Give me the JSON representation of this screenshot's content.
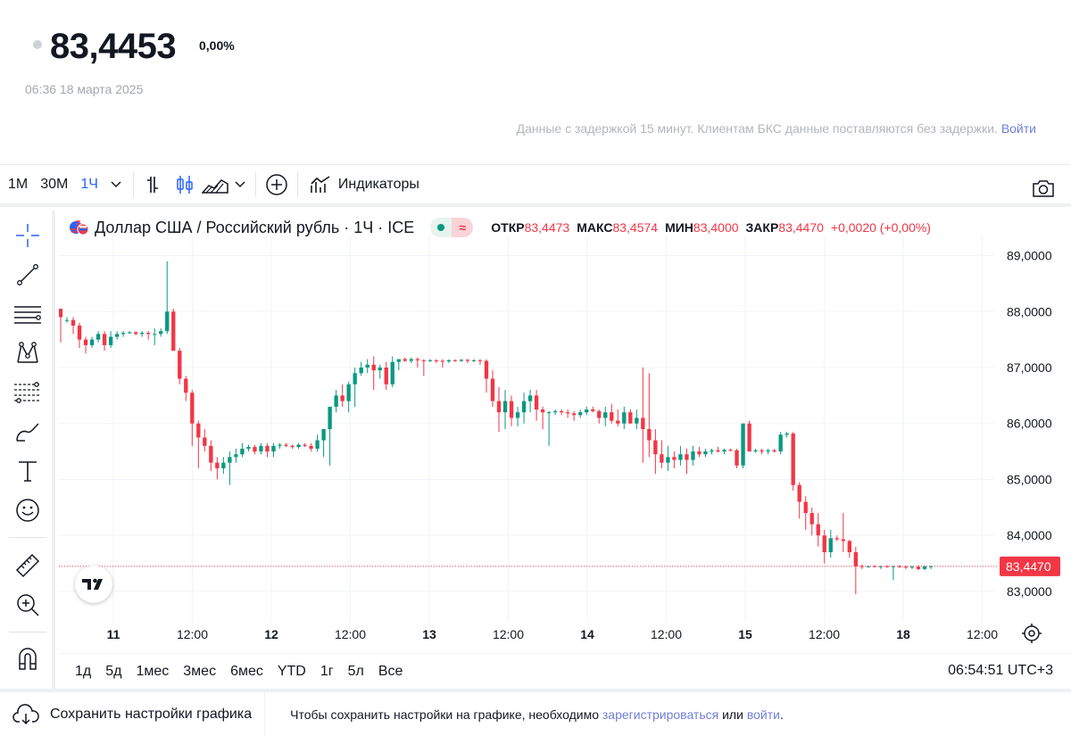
{
  "quote": {
    "price": "83,4453",
    "change": "0,00%",
    "timestamp": "06:36 18 марта 2025",
    "delay_note": "Данные с задержкой 15 минут. Клиентам БКС данные поставляются без задержки.",
    "login_link": "Войти"
  },
  "toolbar": {
    "intervals": [
      "1M",
      "30M",
      "1Ч"
    ],
    "active_interval": "1Ч",
    "indicators_label": "Индикаторы"
  },
  "legend": {
    "symbol": "Доллар США / Российский рубль · 1Ч · ICE",
    "open_label": "ОТКР",
    "open": "83,4473",
    "high_label": "МАКС",
    "high": "83,4574",
    "low_label": "МИН",
    "low": "83,4000",
    "close_label": "ЗАКР",
    "close": "83,4470",
    "change": "+0,0020 (+0,00%)"
  },
  "chart_data": {
    "type": "candlestick",
    "y_ticks": [
      "89,0000",
      "88,0000",
      "87,0000",
      "86,0000",
      "85,0000",
      "84,0000",
      "83,0000"
    ],
    "ylim": [
      82.6,
      89.2
    ],
    "x_tick_labels": [
      "11",
      "12:00",
      "12",
      "12:00",
      "13",
      "12:00",
      "14",
      "12:00",
      "15",
      "12:00",
      "18",
      "12:00"
    ],
    "last_price": 83.447,
    "last_price_label": "83,4470",
    "colors": {
      "up": "#089981",
      "down": "#f23645",
      "grid": "#f0f3fa"
    },
    "candles": [
      [
        88.05,
        88.05,
        87.45,
        87.9
      ],
      [
        87.85,
        87.9,
        87.8,
        87.85
      ],
      [
        87.85,
        87.9,
        87.6,
        87.75
      ],
      [
        87.75,
        87.8,
        87.35,
        87.5
      ],
      [
        87.5,
        87.55,
        87.25,
        87.4
      ],
      [
        87.4,
        87.55,
        87.35,
        87.5
      ],
      [
        87.5,
        87.65,
        87.45,
        87.6
      ],
      [
        87.6,
        87.65,
        87.3,
        87.4
      ],
      [
        87.4,
        87.65,
        87.35,
        87.55
      ],
      [
        87.55,
        87.65,
        87.5,
        87.6
      ],
      [
        87.6,
        87.65,
        87.55,
        87.62
      ],
      [
        87.62,
        87.65,
        87.6,
        87.63
      ],
      [
        87.63,
        87.65,
        87.58,
        87.6
      ],
      [
        87.6,
        87.65,
        87.55,
        87.62
      ],
      [
        87.62,
        87.65,
        87.5,
        87.6
      ],
      [
        87.6,
        87.7,
        87.4,
        87.6
      ],
      [
        87.6,
        87.7,
        87.55,
        87.65
      ],
      [
        87.65,
        88.9,
        87.6,
        88.0
      ],
      [
        88.0,
        88.05,
        87.3,
        87.3
      ],
      [
        87.3,
        87.35,
        86.7,
        86.8
      ],
      [
        86.8,
        86.85,
        86.4,
        86.55
      ],
      [
        86.55,
        86.6,
        85.6,
        86.0
      ],
      [
        86.0,
        86.05,
        85.2,
        85.75
      ],
      [
        85.75,
        85.9,
        85.5,
        85.6
      ],
      [
        85.6,
        85.7,
        85.15,
        85.3
      ],
      [
        85.3,
        85.4,
        85.0,
        85.2
      ],
      [
        85.2,
        85.4,
        85.1,
        85.3
      ],
      [
        85.3,
        85.5,
        84.9,
        85.4
      ],
      [
        85.4,
        85.55,
        85.3,
        85.45
      ],
      [
        85.45,
        85.65,
        85.4,
        85.55
      ],
      [
        85.55,
        85.62,
        85.5,
        85.58
      ],
      [
        85.58,
        85.62,
        85.45,
        85.5
      ],
      [
        85.5,
        85.65,
        85.45,
        85.6
      ],
      [
        85.6,
        85.65,
        85.4,
        85.5
      ],
      [
        85.5,
        85.65,
        85.4,
        85.6
      ],
      [
        85.6,
        85.65,
        85.55,
        85.62
      ],
      [
        85.62,
        85.65,
        85.58,
        85.6
      ],
      [
        85.6,
        85.62,
        85.55,
        85.58
      ],
      [
        85.58,
        85.65,
        85.55,
        85.62
      ],
      [
        85.62,
        85.65,
        85.58,
        85.6
      ],
      [
        85.6,
        85.65,
        85.5,
        85.55
      ],
      [
        85.55,
        85.8,
        85.5,
        85.7
      ],
      [
        85.7,
        85.9,
        85.4,
        85.9
      ],
      [
        85.9,
        86.3,
        85.25,
        86.3
      ],
      [
        86.3,
        86.6,
        86.2,
        86.5
      ],
      [
        86.5,
        86.7,
        86.3,
        86.4
      ],
      [
        86.4,
        86.75,
        86.2,
        86.7
      ],
      [
        86.7,
        87.0,
        86.3,
        86.9
      ],
      [
        86.9,
        87.1,
        86.85,
        87.0
      ],
      [
        87.0,
        87.15,
        86.9,
        87.05
      ],
      [
        87.05,
        87.2,
        86.6,
        86.95
      ],
      [
        86.95,
        87.05,
        86.8,
        87.0
      ],
      [
        87.0,
        87.1,
        86.6,
        86.7
      ],
      [
        86.7,
        87.2,
        86.65,
        87.1
      ],
      [
        87.1,
        87.15,
        86.95,
        87.15
      ],
      [
        87.15,
        87.18,
        87.1,
        87.12
      ],
      [
        87.12,
        87.18,
        87.08,
        87.15
      ],
      [
        87.15,
        87.18,
        87.0,
        87.13
      ],
      [
        87.13,
        87.15,
        86.85,
        87.12
      ],
      [
        87.12,
        87.15,
        87.1,
        87.13
      ],
      [
        87.13,
        87.15,
        87.08,
        87.12
      ],
      [
        87.12,
        87.15,
        87.0,
        87.11
      ],
      [
        87.11,
        87.15,
        87.08,
        87.13
      ],
      [
        87.13,
        87.15,
        87.1,
        87.12
      ],
      [
        87.12,
        87.15,
        87.1,
        87.14
      ],
      [
        87.14,
        87.15,
        87.08,
        87.12
      ],
      [
        87.12,
        87.15,
        87.1,
        87.13
      ],
      [
        87.13,
        87.15,
        87.05,
        87.12
      ],
      [
        87.12,
        87.15,
        86.55,
        86.8
      ],
      [
        86.8,
        86.95,
        86.3,
        86.4
      ],
      [
        86.4,
        86.65,
        85.85,
        86.2
      ],
      [
        86.2,
        86.6,
        85.9,
        86.4
      ],
      [
        86.4,
        86.5,
        85.95,
        86.1
      ],
      [
        86.1,
        86.3,
        85.95,
        86.2
      ],
      [
        86.2,
        86.55,
        86.0,
        86.4
      ],
      [
        86.4,
        86.6,
        86.2,
        86.5
      ],
      [
        86.5,
        86.6,
        86.05,
        86.25
      ],
      [
        86.25,
        86.3,
        85.9,
        86.2
      ],
      [
        86.2,
        86.22,
        85.6,
        86.2
      ],
      [
        86.2,
        86.25,
        86.15,
        86.22
      ],
      [
        86.22,
        86.25,
        86.15,
        86.2
      ],
      [
        86.2,
        86.25,
        86.1,
        86.18
      ],
      [
        86.18,
        86.22,
        86.05,
        86.15
      ],
      [
        86.15,
        86.25,
        86.1,
        86.2
      ],
      [
        86.2,
        86.3,
        86.15,
        86.25
      ],
      [
        86.25,
        86.3,
        86.2,
        86.22
      ],
      [
        86.22,
        86.25,
        86.0,
        86.1
      ],
      [
        86.1,
        86.3,
        85.95,
        86.2
      ],
      [
        86.2,
        86.35,
        86.0,
        86.05
      ],
      [
        86.05,
        86.25,
        85.95,
        86.0
      ],
      [
        86.0,
        86.3,
        85.9,
        86.2
      ],
      [
        86.2,
        86.25,
        86.0,
        86.0
      ],
      [
        86.0,
        86.25,
        85.9,
        86.1
      ],
      [
        86.1,
        87.0,
        85.3,
        85.9
      ],
      [
        85.9,
        86.9,
        85.4,
        85.7
      ],
      [
        85.7,
        85.9,
        85.1,
        85.45
      ],
      [
        85.45,
        85.7,
        85.2,
        85.3
      ],
      [
        85.3,
        85.6,
        85.15,
        85.4
      ],
      [
        85.4,
        85.5,
        85.2,
        85.35
      ],
      [
        85.35,
        85.6,
        85.25,
        85.45
      ],
      [
        85.45,
        85.55,
        85.1,
        85.35
      ],
      [
        85.35,
        85.6,
        85.25,
        85.5
      ],
      [
        85.5,
        85.58,
        85.4,
        85.45
      ],
      [
        85.45,
        85.55,
        85.4,
        85.5
      ],
      [
        85.5,
        85.55,
        85.45,
        85.52
      ],
      [
        85.52,
        85.58,
        85.48,
        85.5
      ],
      [
        85.5,
        85.55,
        85.45,
        85.53
      ],
      [
        85.53,
        85.55,
        85.5,
        85.52
      ],
      [
        85.52,
        85.55,
        85.2,
        85.25
      ],
      [
        85.25,
        86.0,
        85.2,
        86.0
      ],
      [
        86.0,
        86.05,
        85.5,
        85.5
      ],
      [
        85.5,
        85.55,
        85.48,
        85.52
      ],
      [
        85.52,
        85.55,
        85.45,
        85.5
      ],
      [
        85.5,
        85.55,
        85.45,
        85.52
      ],
      [
        85.52,
        85.55,
        85.48,
        85.5
      ],
      [
        85.5,
        85.85,
        85.45,
        85.8
      ],
      [
        85.8,
        85.85,
        85.75,
        85.82
      ],
      [
        85.82,
        85.85,
        84.8,
        84.9
      ],
      [
        84.9,
        84.95,
        84.3,
        84.6
      ],
      [
        84.6,
        84.7,
        84.1,
        84.4
      ],
      [
        84.4,
        84.5,
        84.0,
        84.2
      ],
      [
        84.2,
        84.4,
        83.8,
        84.0
      ],
      [
        84.0,
        84.1,
        83.5,
        83.7
      ],
      [
        83.7,
        84.1,
        83.6,
        83.95
      ],
      [
        83.95,
        84.0,
        83.9,
        83.93
      ],
      [
        83.93,
        84.4,
        83.7,
        83.9
      ],
      [
        83.9,
        83.92,
        83.6,
        83.7
      ],
      [
        83.7,
        83.8,
        82.95,
        83.45
      ],
      [
        83.45,
        83.48,
        83.4,
        83.44
      ],
      [
        83.44,
        83.46,
        83.42,
        83.45
      ],
      [
        83.45,
        83.47,
        83.43,
        83.44
      ],
      [
        83.44,
        83.46,
        83.4,
        83.45
      ],
      [
        83.45,
        83.47,
        83.42,
        83.44
      ],
      [
        83.44,
        83.46,
        83.2,
        83.45
      ],
      [
        83.45,
        83.47,
        83.42,
        83.44
      ],
      [
        83.44,
        83.46,
        83.4,
        83.43
      ],
      [
        83.43,
        83.46,
        83.4,
        83.44
      ],
      [
        83.44,
        83.47,
        83.38,
        83.4
      ],
      [
        83.4,
        83.46,
        83.38,
        83.45
      ],
      [
        83.45,
        83.46,
        83.4,
        83.45
      ]
    ]
  },
  "ranges": [
    "1д",
    "5д",
    "1мес",
    "3мес",
    "6мес",
    "YTD",
    "1г",
    "5л",
    "Все"
  ],
  "clock": "06:54:51 UTC+3",
  "footer": {
    "save_label": "Сохранить настройки графика",
    "text_before": "Чтобы сохранить настройки на графике, необходимо",
    "register_link": "зарегистрироваться",
    "text_middle": "или",
    "login_link": "войти",
    "text_after": "."
  }
}
